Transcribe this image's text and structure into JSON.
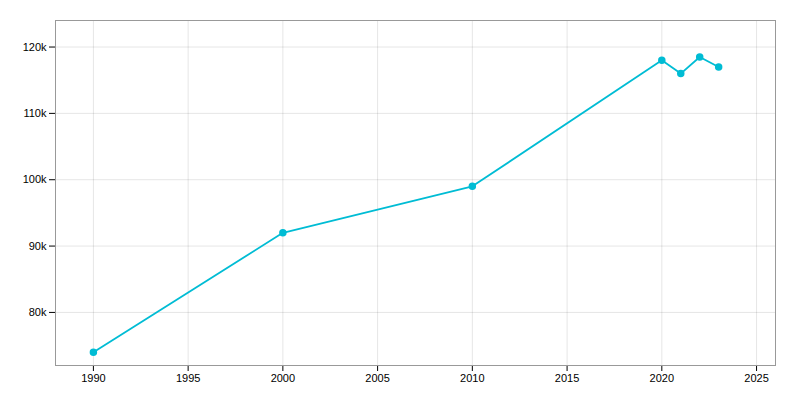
{
  "chart_data": {
    "type": "line",
    "x": [
      1990,
      2000,
      2010,
      2020,
      2021,
      2022,
      2023
    ],
    "values": [
      74000,
      92000,
      99000,
      118000,
      116000,
      118500,
      117000
    ],
    "color": "#00BCD4",
    "marker": "circle",
    "xlim": [
      1988,
      2026
    ],
    "ylim": [
      72000,
      124000
    ],
    "xticks": [
      1990,
      1995,
      2000,
      2005,
      2010,
      2015,
      2020,
      2025
    ],
    "yticks": [
      {
        "value": 80000,
        "label": "80k"
      },
      {
        "value": 90000,
        "label": "90k"
      },
      {
        "value": 100000,
        "label": "100k"
      },
      {
        "value": 110000,
        "label": "110k"
      },
      {
        "value": 120000,
        "label": "120k"
      }
    ],
    "grid": true
  }
}
